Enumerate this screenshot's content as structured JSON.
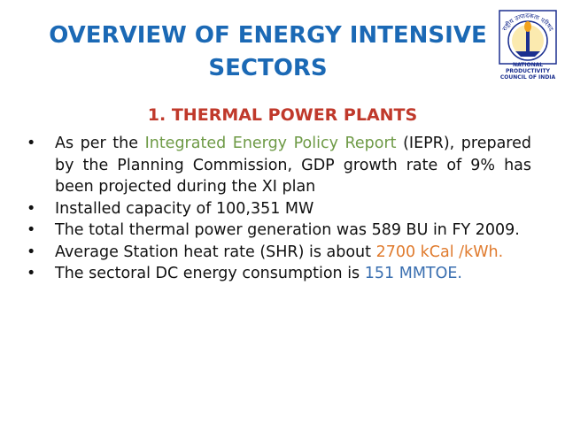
{
  "title": {
    "line1": "OVERVIEW OF ENERGY INTENSIVE",
    "line2": "SECTORS"
  },
  "logo": {
    "hindi_text": "राष्ट्रीय उत्पादकता परिषद",
    "caption_line1": "NATIONAL PRODUCTIVITY",
    "caption_line2": "COUNCIL OF INDIA"
  },
  "subtitle": "1. THERMAL POWER PLANTS",
  "bullet_glyph": "•",
  "bullets": [
    {
      "before": "As per the ",
      "highlight": "Integrated Energy Policy Report",
      "after": " (IEPR), prepared by the Planning Commission, GDP growth rate of 9% has been projected during the XI plan"
    },
    {
      "text": "Installed capacity of 100,351 MW"
    },
    {
      "text": "The total thermal power generation was 589  BU in FY 2009."
    },
    {
      "before": "Average Station heat rate (SHR) is about ",
      "highlight": "2700 kCal /kWh.",
      "after": ""
    },
    {
      "before": "The sectoral DC energy consumption is ",
      "highlight": "151 MMTOE.",
      "after": ""
    }
  ],
  "colors": {
    "title": "#1b69b5",
    "subtitle": "#c0392b",
    "highlight_green": "#6e9a46",
    "highlight_orange": "#e07b2e",
    "highlight_blue": "#3a6fb0"
  }
}
